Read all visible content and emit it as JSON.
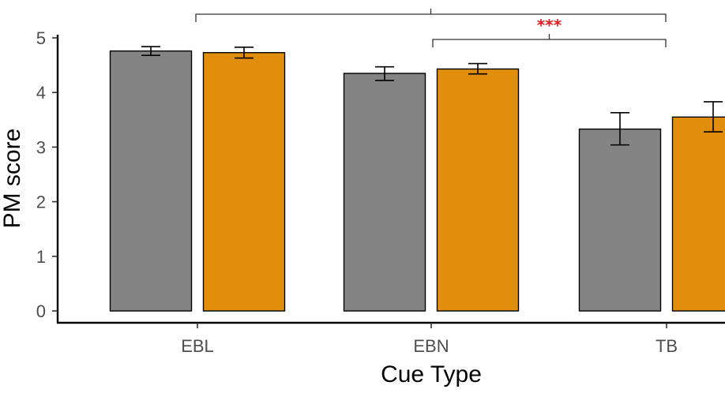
{
  "chart_data": {
    "type": "bar",
    "title": "",
    "xlabel": "Cue Type",
    "ylabel": "PM score",
    "ylim": [
      0,
      5
    ],
    "yticks": [
      0,
      1,
      2,
      3,
      4,
      5
    ],
    "categories": [
      "EBL",
      "EBN",
      "TB"
    ],
    "grid": false,
    "series": [
      {
        "color": "#848484",
        "values": [
          4.76,
          4.35,
          3.33
        ],
        "err_low": [
          4.68,
          4.22,
          3.04
        ],
        "err_high": [
          4.84,
          4.47,
          3.63
        ]
      },
      {
        "color": "#E08E0B",
        "values": [
          4.73,
          4.43,
          3.55
        ],
        "err_low": [
          4.63,
          4.34,
          3.28
        ],
        "err_high": [
          4.83,
          4.53,
          3.83
        ]
      }
    ],
    "annotations": [
      {
        "from": "EBL",
        "to": "TB",
        "label": "***",
        "color": "#e41a1c"
      },
      {
        "from": "EBN",
        "to": "TB",
        "label": "***",
        "color": "#e41a1c"
      }
    ]
  }
}
